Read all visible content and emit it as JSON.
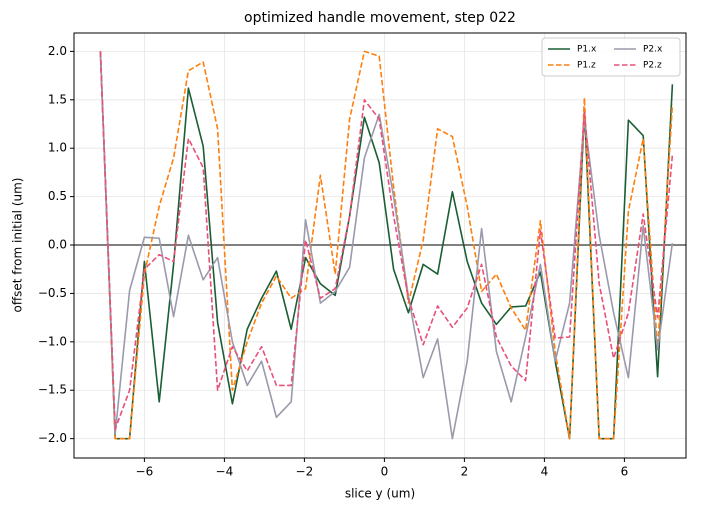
{
  "chart_data": {
    "type": "line",
    "title": "optimized handle movement, step 022",
    "xlabel": "slice y (um)",
    "ylabel": "offset from initial (um)",
    "x": [
      -7.1,
      -6.73,
      -6.37,
      -6.0,
      -5.63,
      -5.27,
      -4.9,
      -4.53,
      -4.17,
      -3.8,
      -3.43,
      -3.07,
      -2.7,
      -2.33,
      -1.97,
      -1.6,
      -1.23,
      -0.87,
      -0.5,
      -0.13,
      0.23,
      0.6,
      0.97,
      1.33,
      1.7,
      2.07,
      2.43,
      2.8,
      3.17,
      3.53,
      3.9,
      4.27,
      4.63,
      5.0,
      5.37,
      5.73,
      6.1,
      6.47,
      6.83,
      7.2
    ],
    "series": [
      {
        "name": "P1.x",
        "color": "#1a5e34",
        "linestyle": "solid",
        "values": [
          2.0,
          -2.0,
          -2.0,
          -0.17,
          -1.62,
          -0.2,
          1.62,
          1.02,
          -0.8,
          -1.64,
          -0.87,
          -0.55,
          -0.27,
          -0.87,
          -0.13,
          -0.4,
          -0.52,
          0.3,
          1.32,
          0.85,
          -0.25,
          -0.7,
          -0.2,
          -0.3,
          0.55,
          -0.17,
          -0.6,
          -0.82,
          -0.64,
          -0.63,
          -0.28,
          -1.2,
          -2.0,
          1.4,
          -2.0,
          -2.0,
          1.29,
          1.13,
          -1.36,
          1.66
        ]
      },
      {
        "name": "P1.z",
        "color": "#ff7f0e",
        "linestyle": "dashed",
        "values": [
          2.0,
          -2.0,
          -2.0,
          -0.3,
          0.4,
          0.9,
          1.8,
          1.89,
          1.2,
          -1.5,
          -1.0,
          -0.6,
          -0.32,
          -0.55,
          -0.45,
          0.72,
          -0.3,
          1.3,
          2.0,
          1.95,
          0.6,
          -0.6,
          0.05,
          1.2,
          1.12,
          0.4,
          -0.48,
          -0.3,
          -0.65,
          -0.88,
          0.25,
          -1.1,
          -2.0,
          1.52,
          -2.0,
          -2.0,
          0.35,
          1.1,
          -1.08,
          1.45
        ]
      },
      {
        "name": "P2.x",
        "color": "#9a9aac",
        "linestyle": "solid",
        "values": [
          2.0,
          -1.95,
          -0.47,
          0.08,
          0.07,
          -0.74,
          0.1,
          -0.36,
          -0.13,
          -1.0,
          -1.45,
          -1.2,
          -1.78,
          -1.62,
          0.26,
          -0.6,
          -0.48,
          -0.23,
          0.9,
          1.35,
          0.5,
          -0.53,
          -1.37,
          -0.97,
          -2.0,
          -1.2,
          0.17,
          -1.1,
          -1.62,
          -0.95,
          -0.2,
          -1.2,
          -0.6,
          1.3,
          0.1,
          -0.7,
          -1.37,
          0.2,
          -1.08,
          0.02
        ]
      },
      {
        "name": "P2.z",
        "color": "#e8507a",
        "linestyle": "dashed",
        "values": [
          2.0,
          -1.9,
          -1.5,
          -0.25,
          -0.1,
          -0.17,
          1.1,
          0.8,
          -1.5,
          -1.05,
          -1.3,
          -1.05,
          -1.45,
          -1.45,
          0.05,
          -0.55,
          -0.45,
          0.3,
          1.5,
          1.3,
          0.3,
          -0.55,
          -1.03,
          -0.63,
          -0.85,
          -0.65,
          -0.2,
          -0.95,
          -1.25,
          -1.4,
          0.15,
          -0.96,
          -0.95,
          1.38,
          -0.4,
          -1.17,
          -0.7,
          0.32,
          -0.75,
          0.93
        ]
      }
    ],
    "xlim": [
      -7.76,
      7.54
    ],
    "ylim": [
      -2.2,
      2.19
    ],
    "xticks": [
      {
        "value": -6,
        "label": "−6"
      },
      {
        "value": -4,
        "label": "−4"
      },
      {
        "value": -2,
        "label": "−2"
      },
      0,
      2,
      4,
      6
    ],
    "yticks": [
      {
        "value": -2,
        "label": "−2.0"
      },
      {
        "value": -1.5,
        "label": "−1.5"
      },
      {
        "value": -1,
        "label": "−1.0"
      },
      {
        "value": -0.5,
        "label": "−0.5"
      },
      {
        "value": 0,
        "label": "0.0"
      },
      {
        "value": 0.5,
        "label": "0.5"
      },
      {
        "value": 1,
        "label": "1.0"
      },
      {
        "value": 1.5,
        "label": "1.5"
      },
      {
        "value": 2,
        "label": "2.0"
      }
    ],
    "axhline": 0,
    "grid": true,
    "legend": "upper right",
    "legend_ncol": 2
  }
}
